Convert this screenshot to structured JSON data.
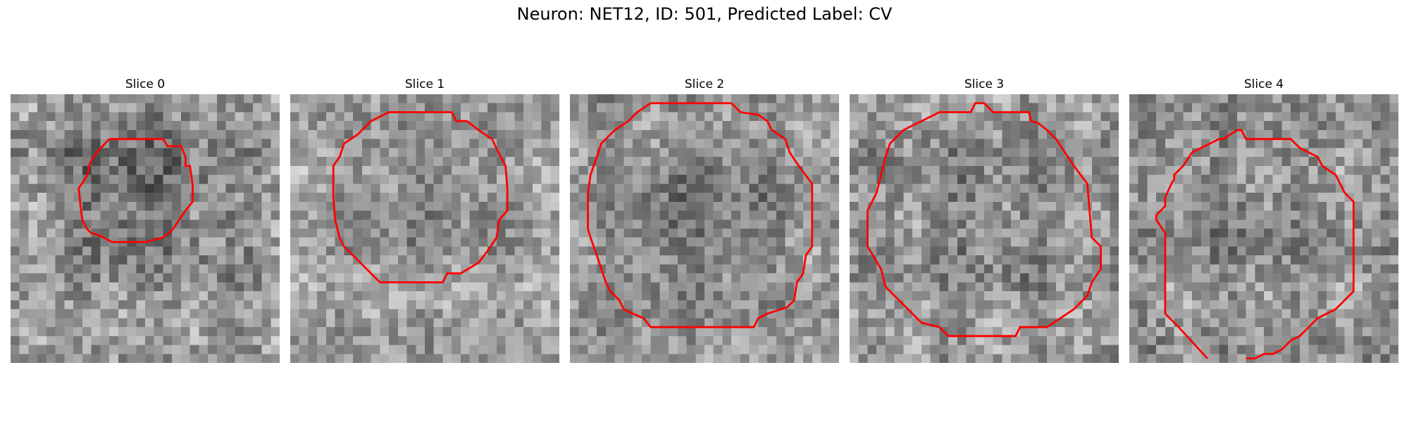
{
  "figure": {
    "title": "Neuron: NET12, ID: 501, Predicted Label: CV"
  },
  "contour_color": "#ff0000",
  "panels": [
    {
      "title": "Slice 0",
      "seed": 11,
      "bright": 150,
      "spread": 95,
      "dark_blob": true,
      "darkness": 50
    },
    {
      "title": "Slice 1",
      "seed": 23,
      "bright": 160,
      "spread": 80,
      "dark_blob": true,
      "darkness": 25
    },
    {
      "title": "Slice 2",
      "seed": 37,
      "bright": 150,
      "spread": 80,
      "dark_blob": true,
      "darkness": 35
    },
    {
      "title": "Slice 3",
      "seed": 41,
      "bright": 150,
      "spread": 90,
      "dark_blob": true,
      "darkness": 20
    },
    {
      "title": "Slice 4",
      "seed": 53,
      "bright": 150,
      "spread": 90,
      "dark_blob": true,
      "darkness": 15
    }
  ]
}
